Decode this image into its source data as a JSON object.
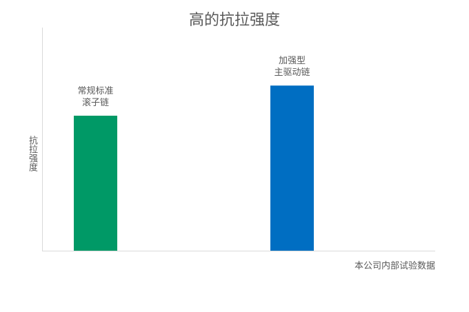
{
  "chart_data": {
    "type": "bar",
    "title": "高的抗拉强度",
    "ylabel": "抗拉强度",
    "xlabel": "本公司内部试验数据",
    "categories": [
      "常规标准\n滚子链",
      "加强型\n主驱动链"
    ],
    "values": [
      0.605,
      0.74
    ],
    "ylim": [
      0,
      1
    ],
    "colors": [
      "#009966",
      "#006EC2"
    ],
    "grid": false,
    "legend": "none",
    "ticks_shown": false
  }
}
